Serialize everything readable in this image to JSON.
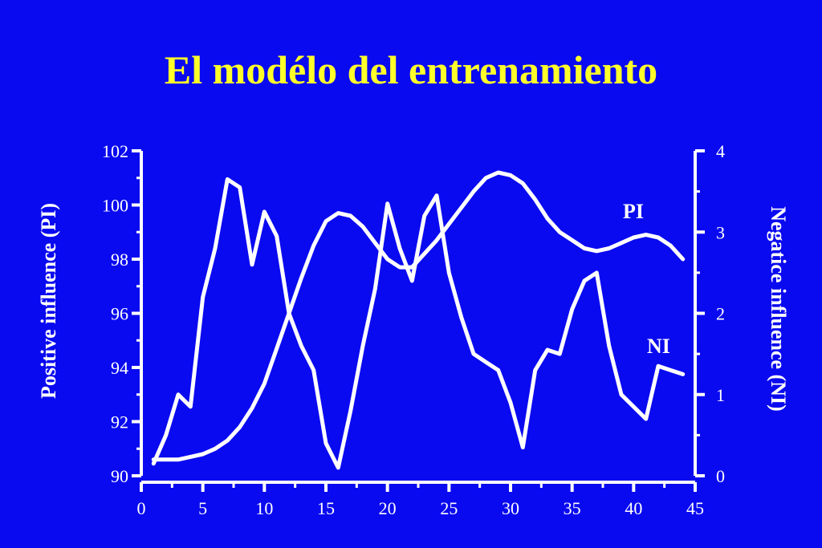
{
  "chart_data": {
    "type": "line",
    "title": "El modélo del entrenamiento",
    "xlabel": "",
    "ylabel_left": "Positive influence (PI)",
    "ylabel_right": "Negatice influence (NI)",
    "xlim": [
      0,
      45
    ],
    "ylim_left": [
      90,
      102
    ],
    "ylim_right": [
      0,
      4
    ],
    "x_ticks": [
      "0",
      "5",
      "10",
      "15",
      "20",
      "25",
      "30",
      "35",
      "40",
      "45"
    ],
    "y_left_ticks": [
      "90",
      "92",
      "94",
      "96",
      "98",
      "100",
      "102"
    ],
    "y_right_ticks": [
      "0",
      "1",
      "2",
      "3",
      "4"
    ],
    "grid": false,
    "colors": {
      "background": "#0a0af0",
      "title": "#ffff2a",
      "lines": "#ffffff"
    },
    "series": [
      {
        "name": "PI",
        "axis": "left",
        "x": [
          1,
          2,
          3,
          4,
          5,
          6,
          7,
          8,
          9,
          10,
          11,
          12,
          13,
          14,
          15,
          16,
          17,
          18,
          19,
          20,
          21,
          22,
          23,
          24,
          25,
          26,
          27,
          28,
          29,
          30,
          31,
          32,
          33,
          34,
          35,
          36,
          37,
          38,
          39,
          40,
          41,
          42,
          43,
          44
        ],
        "values": [
          90.6,
          90.6,
          90.6,
          90.7,
          90.8,
          91.0,
          91.3,
          91.8,
          92.5,
          93.4,
          94.7,
          96.0,
          97.3,
          98.5,
          99.4,
          99.7,
          99.6,
          99.2,
          98.6,
          98.0,
          97.7,
          97.7,
          98.2,
          98.7,
          99.3,
          99.9,
          100.5,
          101.0,
          101.2,
          101.1,
          100.8,
          100.2,
          99.5,
          99.0,
          98.7,
          98.4,
          98.3,
          98.4,
          98.6,
          98.8,
          98.9,
          98.8,
          98.5,
          98.0
        ],
        "label": "PI"
      },
      {
        "name": "NI",
        "axis": "right",
        "x": [
          1,
          2,
          3,
          4,
          5,
          6,
          7,
          8,
          9,
          10,
          11,
          12,
          13,
          14,
          15,
          16,
          17,
          18,
          19,
          20,
          21,
          22,
          23,
          24,
          25,
          26,
          27,
          28,
          29,
          30,
          31,
          32,
          33,
          34,
          35,
          36,
          37,
          38,
          39,
          40,
          41,
          42,
          43,
          44
        ],
        "values": [
          0.15,
          0.5,
          1.0,
          0.85,
          2.2,
          2.8,
          3.65,
          3.55,
          2.6,
          3.25,
          2.95,
          2.0,
          1.6,
          1.3,
          0.4,
          0.1,
          0.8,
          1.6,
          2.3,
          3.35,
          2.8,
          2.4,
          3.2,
          3.45,
          2.5,
          1.95,
          1.5,
          1.4,
          1.3,
          0.9,
          0.35,
          1.3,
          1.55,
          1.5,
          2.05,
          2.4,
          2.5,
          1.6,
          1.0,
          0.85,
          0.7,
          1.35,
          1.3,
          1.25
        ],
        "label": "NI"
      }
    ]
  }
}
